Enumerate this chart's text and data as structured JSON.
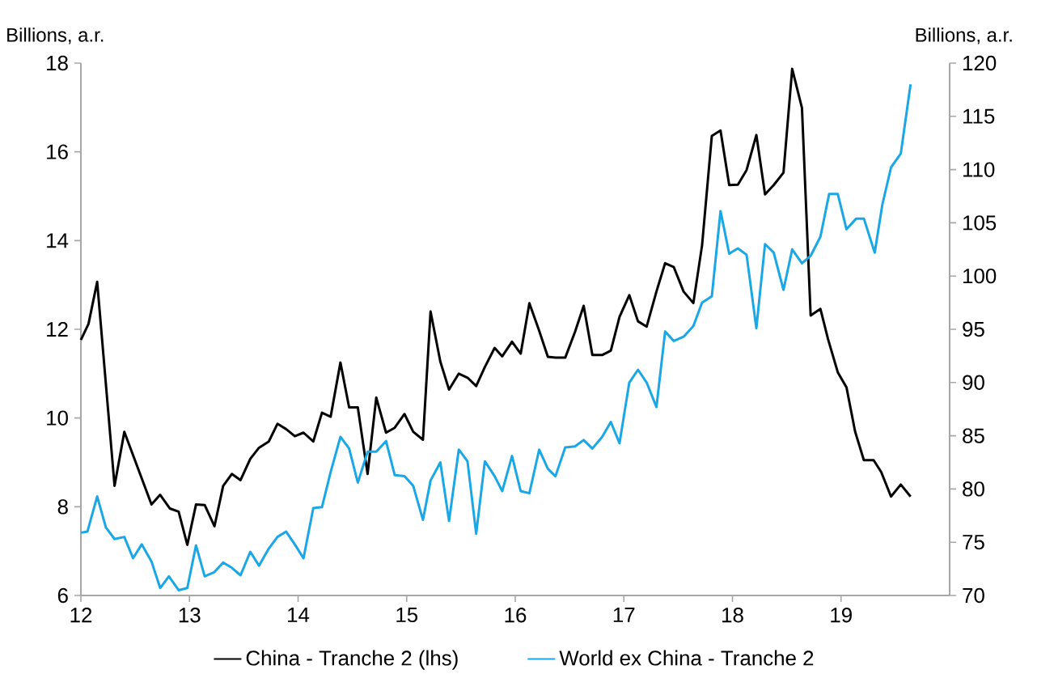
{
  "chart_data": {
    "type": "line",
    "ylabel": "Billions, a.r.",
    "y2label": "Billions, a.r.",
    "xlim": [
      12,
      20
    ],
    "xticks": [
      12,
      13,
      14,
      15,
      16,
      17,
      18,
      19
    ],
    "ylim": [
      6,
      18
    ],
    "yticks": [
      6,
      8,
      10,
      12,
      14,
      16,
      18
    ],
    "y2lim": [
      70,
      120
    ],
    "y2ticks": [
      70,
      75,
      80,
      85,
      90,
      95,
      100,
      105,
      110,
      115,
      120
    ],
    "legend": "bottom",
    "grid": false,
    "marker": "none",
    "line_style": "solid",
    "series": [
      {
        "name": "China - Tranche 2 (lhs)",
        "color": "#000000",
        "x": [
          12.0,
          12.07,
          12.15,
          12.31,
          12.4,
          12.65,
          12.73,
          12.82,
          12.9,
          12.98,
          13.06,
          13.14,
          13.23,
          13.31,
          13.39,
          13.47,
          13.56,
          13.64,
          13.73,
          13.81,
          13.89,
          13.97,
          14.05,
          14.14,
          14.22,
          14.3,
          14.39,
          14.47,
          14.55,
          14.64,
          14.72,
          14.81,
          14.89,
          14.98,
          15.06,
          15.15,
          15.22,
          15.31,
          15.39,
          15.48,
          15.56,
          15.64,
          15.72,
          15.81,
          15.88,
          15.97,
          16.05,
          16.13,
          16.22,
          16.3,
          16.37,
          16.46,
          16.55,
          16.63,
          16.71,
          16.8,
          16.88,
          16.96,
          17.05,
          17.13,
          17.21,
          17.3,
          17.38,
          17.46,
          17.55,
          17.64,
          17.72,
          17.81,
          17.89,
          17.97,
          18.05,
          18.13,
          18.22,
          18.3,
          18.38,
          18.47,
          18.55,
          18.64,
          18.72,
          18.81,
          18.88,
          18.97,
          19.05,
          19.13,
          19.21,
          19.3,
          19.37,
          19.46,
          19.55,
          19.64
        ],
        "values": [
          11.76,
          12.12,
          13.07,
          8.47,
          9.69,
          8.05,
          8.27,
          7.96,
          7.89,
          7.14,
          8.05,
          8.04,
          7.56,
          8.47,
          8.74,
          8.6,
          9.08,
          9.33,
          9.47,
          9.87,
          9.75,
          9.59,
          9.67,
          9.47,
          10.12,
          10.03,
          11.25,
          10.24,
          10.24,
          8.74,
          10.46,
          9.67,
          9.78,
          10.09,
          9.69,
          9.51,
          12.4,
          11.27,
          10.64,
          11.0,
          10.91,
          10.72,
          11.15,
          11.58,
          11.39,
          11.72,
          11.45,
          12.59,
          11.97,
          11.38,
          11.36,
          11.36,
          11.94,
          12.53,
          11.42,
          11.42,
          11.52,
          12.28,
          12.77,
          12.18,
          12.06,
          12.85,
          13.49,
          13.4,
          12.85,
          12.59,
          13.89,
          16.36,
          16.48,
          15.25,
          15.26,
          15.59,
          16.38,
          15.04,
          15.25,
          15.53,
          17.87,
          16.99,
          12.31,
          12.46,
          11.78,
          11.03,
          10.69,
          9.69,
          9.05,
          9.05,
          8.78,
          8.23,
          8.5,
          8.23
        ]
      },
      {
        "name": "World ex China - Tranche 2",
        "color": "#1aa7e6",
        "axis": "y2",
        "x": [
          12.0,
          12.06,
          12.15,
          12.23,
          12.31,
          12.4,
          12.48,
          12.56,
          12.65,
          12.73,
          12.81,
          12.9,
          12.98,
          13.06,
          13.14,
          13.23,
          13.31,
          13.39,
          13.47,
          13.56,
          13.64,
          13.73,
          13.81,
          13.89,
          13.97,
          14.05,
          14.14,
          14.22,
          14.3,
          14.39,
          14.47,
          14.55,
          14.64,
          14.72,
          14.81,
          14.89,
          14.98,
          15.06,
          15.15,
          15.22,
          15.31,
          15.39,
          15.48,
          15.56,
          15.64,
          15.72,
          15.81,
          15.88,
          15.97,
          16.05,
          16.13,
          16.22,
          16.3,
          16.37,
          16.46,
          16.55,
          16.63,
          16.71,
          16.8,
          16.88,
          16.96,
          17.05,
          17.13,
          17.21,
          17.3,
          17.38,
          17.46,
          17.55,
          17.64,
          17.72,
          17.81,
          17.89,
          17.97,
          18.05,
          18.13,
          18.22,
          18.3,
          18.38,
          18.47,
          18.55,
          18.64,
          18.72,
          18.81,
          18.89,
          18.97,
          19.05,
          19.14,
          19.21,
          19.31,
          19.38,
          19.46,
          19.55,
          19.64
        ],
        "values": [
          75.9,
          76.0,
          79.3,
          76.4,
          75.3,
          75.5,
          73.5,
          74.8,
          73.2,
          70.7,
          71.8,
          70.5,
          70.7,
          74.7,
          71.8,
          72.2,
          73.1,
          72.6,
          71.9,
          74.1,
          72.8,
          74.4,
          75.5,
          76.0,
          74.8,
          73.5,
          78.2,
          78.3,
          81.6,
          84.9,
          83.8,
          80.6,
          83.5,
          83.5,
          84.5,
          81.3,
          81.2,
          80.3,
          77.1,
          80.8,
          82.5,
          77.0,
          83.7,
          82.6,
          75.8,
          82.6,
          81.2,
          79.8,
          83.1,
          79.8,
          79.6,
          83.7,
          81.9,
          81.2,
          83.9,
          84.0,
          84.6,
          83.8,
          84.9,
          86.3,
          84.3,
          90.0,
          91.2,
          90.0,
          87.7,
          94.8,
          93.9,
          94.3,
          95.3,
          97.5,
          98.1,
          106.1,
          102.1,
          102.6,
          102.0,
          95.1,
          103.0,
          102.2,
          98.7,
          102.5,
          101.2,
          101.9,
          103.7,
          107.7,
          107.7,
          104.4,
          105.4,
          105.4,
          102.2,
          106.7,
          110.2,
          111.5,
          118.0
        ]
      }
    ]
  }
}
